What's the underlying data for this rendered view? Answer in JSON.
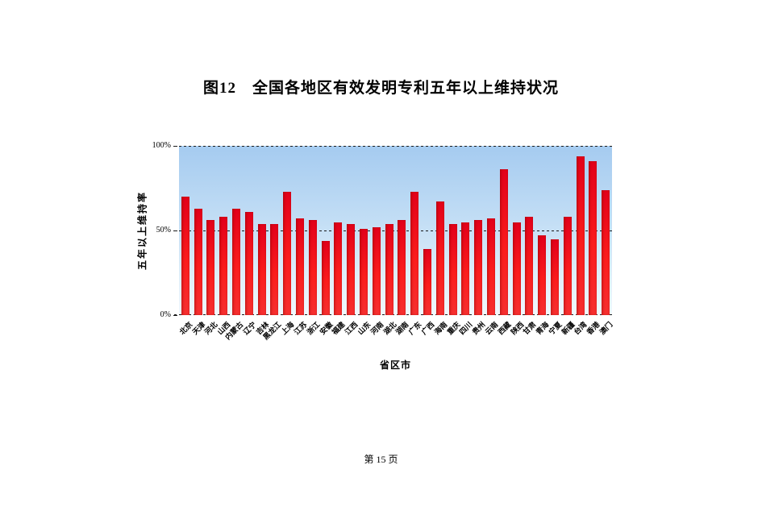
{
  "title": "图12　全国各地区有效发明专利五年以上维持状况",
  "footer": {
    "page_label": "第 15 页"
  },
  "chart_data": {
    "type": "bar",
    "title": "图12　全国各地区有效发明专利五年以上维持状况",
    "xlabel": "省区市",
    "ylabel": "五年以上维持率",
    "ylim": [
      0,
      100
    ],
    "yticks": [
      "0%",
      "50%",
      "100%"
    ],
    "grid": "horizontal dashed lines at 0%, 50%, 100%",
    "legend": "none",
    "bar_color": "#f01515",
    "plot_bg_gradient_top": "#a5cbf0",
    "plot_bg_gradient_bottom": "#f0f8fe",
    "categories": [
      "北京",
      "天津",
      "河北",
      "山西",
      "内蒙古",
      "辽宁",
      "吉林",
      "黑龙江",
      "上海",
      "江苏",
      "浙江",
      "安徽",
      "福建",
      "江西",
      "山东",
      "河南",
      "湖北",
      "湖南",
      "广东",
      "广西",
      "海南",
      "重庆",
      "四川",
      "贵州",
      "云南",
      "西藏",
      "陕西",
      "甘肃",
      "青海",
      "宁夏",
      "新疆",
      "台湾",
      "香港",
      "澳门"
    ],
    "values": [
      70,
      63,
      56,
      58,
      63,
      61,
      54,
      54,
      73,
      57,
      56,
      44,
      55,
      54,
      51,
      52,
      54,
      56,
      73,
      39,
      67,
      54,
      55,
      56,
      57,
      86,
      55,
      58,
      47,
      45,
      58,
      94,
      91,
      74
    ]
  }
}
